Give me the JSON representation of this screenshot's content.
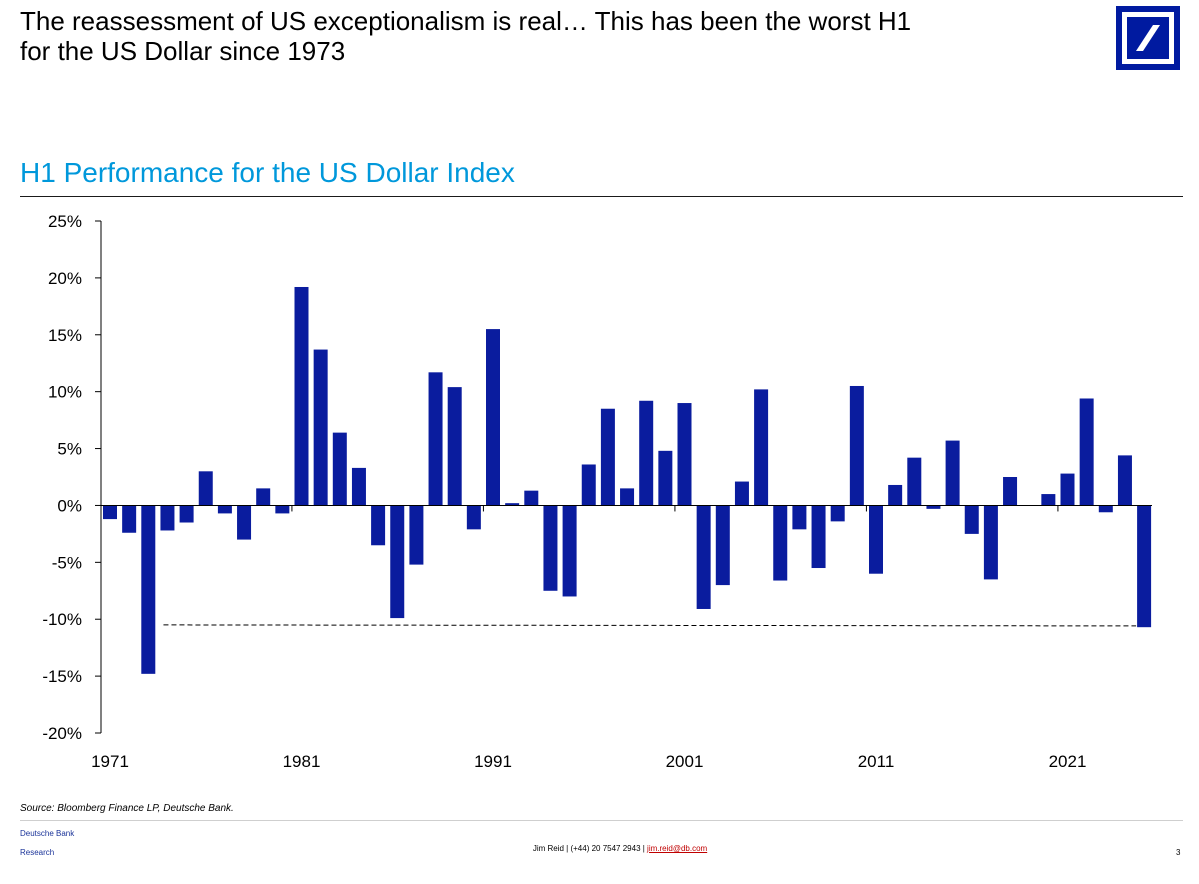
{
  "header": {
    "headline_line1": "The reassessment of US exceptionalism is real… This has been the worst H1",
    "headline_line2": "for the US Dollar since 1973",
    "logo_icon": "deutsche-bank-logo-icon",
    "brand_color": "#001aa0"
  },
  "chart_title": "H1 Performance for the US Dollar Index",
  "chart_data": {
    "type": "bar",
    "title": "H1 Performance for the US Dollar Index",
    "xlabel": "",
    "ylabel": "",
    "ylim": [
      -20,
      25
    ],
    "yticks": [
      25,
      20,
      15,
      10,
      5,
      0,
      -5,
      -10,
      -15,
      -20
    ],
    "ytick_labels": [
      "25%",
      "20%",
      "15%",
      "10%",
      "5%",
      "0%",
      "-5%",
      "-10%",
      "-15%",
      "-20%"
    ],
    "xtick_labels": [
      "1971",
      "1981",
      "1991",
      "2001",
      "2011",
      "2021"
    ],
    "xtick_years": [
      1971,
      1981,
      1991,
      2001,
      2011,
      2021
    ],
    "bar_color": "#0a1c9e",
    "reference_line": {
      "value": -10.5,
      "style": "dashed",
      "from_year": 1974,
      "to_year": 2025
    },
    "categories": [
      1971,
      1972,
      1973,
      1974,
      1975,
      1976,
      1977,
      1978,
      1979,
      1980,
      1981,
      1982,
      1983,
      1984,
      1985,
      1986,
      1987,
      1988,
      1989,
      1990,
      1991,
      1992,
      1993,
      1994,
      1995,
      1996,
      1997,
      1998,
      1999,
      2000,
      2001,
      2002,
      2003,
      2004,
      2005,
      2006,
      2007,
      2008,
      2009,
      2010,
      2011,
      2012,
      2013,
      2014,
      2015,
      2016,
      2017,
      2018,
      2019,
      2020,
      2021,
      2022,
      2023,
      2024,
      2025
    ],
    "values": [
      -1.2,
      -2.4,
      -14.8,
      -2.2,
      -1.5,
      3.0,
      -0.7,
      -3.0,
      1.5,
      -0.7,
      19.2,
      13.7,
      6.4,
      3.3,
      -3.5,
      -9.9,
      -5.2,
      11.7,
      10.4,
      -2.1,
      15.5,
      0.2,
      1.3,
      -7.5,
      -8.0,
      3.6,
      8.5,
      1.5,
      9.2,
      4.8,
      9.0,
      -9.1,
      -7.0,
      2.1,
      10.2,
      -6.6,
      -2.1,
      -5.5,
      -1.4,
      10.5,
      -6.0,
      1.8,
      4.2,
      -0.3,
      5.7,
      -2.5,
      -6.5,
      2.5,
      0.0,
      1.0,
      2.8,
      9.4,
      -0.6,
      4.4,
      -10.7
    ]
  },
  "source": "Source: Bloomberg Finance LP, Deutsche Bank.",
  "footer": {
    "bank": "Deutsche Bank",
    "research": "Research",
    "contact_prefix": "Jim Reid | (+44) 20 7547 2943 | ",
    "email": "jim.reid@db.com",
    "page_number": "3"
  }
}
